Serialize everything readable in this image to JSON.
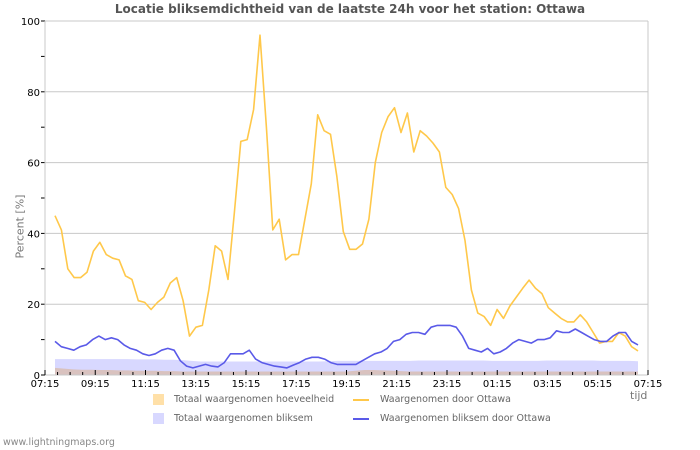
{
  "chart_data": {
    "type": "line",
    "title": "Locatie bliksemdichtheid van de laatste 24h voor het station: Ottawa",
    "xlabel": "tijd",
    "ylabel": "Percent   [%]",
    "ylim": [
      0,
      100
    ],
    "yticks": [
      0,
      20,
      40,
      60,
      80,
      100
    ],
    "xticks": [
      "07:15",
      "09:15",
      "11:15",
      "13:15",
      "15:15",
      "17:15",
      "19:15",
      "21:15",
      "23:15",
      "01:15",
      "03:15",
      "05:15",
      "07:15"
    ],
    "grid": true,
    "legend_position": "bottom",
    "series": [
      {
        "name": "Totaal waargenomen hoeveelheid",
        "type": "area",
        "color": "#ffe0a8",
        "values": [
          2,
          1.8,
          1.6,
          1.5,
          1.5,
          1.4,
          1.4,
          1.3,
          1.3,
          1.2,
          1.2,
          1.2,
          1.1,
          1.1,
          1,
          1,
          1,
          1,
          1,
          1,
          1,
          1,
          1,
          1,
          1,
          1,
          1,
          1,
          1,
          1,
          1,
          1,
          1,
          1.2,
          1.4,
          1.4,
          1.3,
          1.2,
          1.1,
          1,
          1,
          1,
          1,
          1,
          1,
          1,
          1,
          1,
          1,
          1,
          1,
          1,
          1,
          1,
          1,
          1,
          1,
          1,
          1,
          1,
          1,
          1,
          1,
          1,
          1
        ]
      },
      {
        "name": "Totaal waargenomen bliksem",
        "type": "area",
        "color": "#d8d8ff",
        "values": [
          4.5,
          4.5,
          4.5,
          4.5,
          4.5,
          4.5,
          4.5,
          4.5,
          4.5,
          4.4,
          4.4,
          4.4,
          4.3,
          4.3,
          4.2,
          4,
          3.8,
          3.8,
          3.8,
          3.8,
          3.8,
          3.8,
          3.8,
          3.8,
          3.8,
          3.8,
          3.8,
          3.8,
          3.8,
          3.8,
          3.9,
          4,
          4,
          4,
          4,
          4,
          4,
          4,
          4,
          4,
          4.1,
          4.1,
          4.1,
          4.1,
          4.1,
          4.1,
          4.1,
          4.1,
          4,
          4,
          4,
          4,
          4,
          4,
          4.1,
          4.1,
          4.1,
          4.1,
          4.1,
          4.1,
          4,
          4,
          4,
          4,
          3.9
        ]
      },
      {
        "name": "Waargenomen door Ottawa",
        "type": "line",
        "color": "#ffc84a",
        "values": [
          45,
          41,
          30,
          27.5,
          27.5,
          29,
          35,
          37.5,
          34,
          33,
          32.5,
          28,
          27,
          21,
          20.5,
          18.5,
          20.5,
          22,
          26,
          27.5,
          21,
          11,
          13.5,
          14,
          24,
          36.5,
          35,
          27,
          46,
          66,
          66.5,
          75,
          96,
          70,
          41,
          44,
          32.5,
          34,
          34,
          44,
          54,
          73.5,
          69,
          68,
          56,
          40.5,
          35.5,
          35.5,
          37,
          44,
          60,
          68.5,
          73,
          75.5,
          68.5,
          74,
          63,
          69,
          67.5,
          65.5,
          63,
          53,
          51,
          47,
          38,
          24,
          17.5,
          16.5,
          14,
          18.5,
          16,
          19.5,
          22,
          24.5,
          26.8,
          24.5,
          23,
          19,
          17.5,
          16,
          15,
          15,
          17,
          15,
          12,
          9,
          9.5,
          9.5,
          12,
          11,
          8,
          6.8
        ]
      },
      {
        "name": "Waargenomen bliksem door Ottawa",
        "type": "line",
        "color": "#5a5ae8",
        "values": [
          9.5,
          8,
          7.5,
          7,
          8,
          8.5,
          10,
          11,
          10,
          10.5,
          10,
          8.5,
          7.5,
          7,
          6,
          5.5,
          6,
          7,
          7.5,
          7,
          4,
          2.5,
          2,
          2.5,
          3,
          2.5,
          2.3,
          3.5,
          6,
          6,
          6,
          7,
          4.5,
          3.5,
          3,
          2.5,
          2.3,
          2,
          2.8,
          3.5,
          4.5,
          5,
          5,
          4.5,
          3.5,
          3,
          3,
          3,
          3,
          4,
          5,
          6,
          6.5,
          7.5,
          9.5,
          10,
          11.5,
          12,
          12,
          11.5,
          13.5,
          14,
          14,
          14,
          13.5,
          11,
          7.5,
          7,
          6.5,
          7.5,
          6,
          6.5,
          7.5,
          9,
          10,
          9.5,
          9,
          10,
          10,
          10.5,
          12.5,
          12,
          12,
          13,
          12,
          11,
          10,
          9.5,
          9.5,
          11,
          12,
          12,
          9.5,
          8.5
        ]
      }
    ]
  },
  "legend": {
    "items": [
      {
        "label": "Totaal waargenomen hoeveelheid",
        "color": "#ffe0a8"
      },
      {
        "label": "Waargenomen door Ottawa",
        "color": "#ffc84a"
      },
      {
        "label": "Totaal waargenomen bliksem",
        "color": "#d8d8ff"
      },
      {
        "label": "Waargenomen bliksem door Ottawa",
        "color": "#5a5ae8"
      }
    ]
  },
  "footer": "www.lightningmaps.org"
}
